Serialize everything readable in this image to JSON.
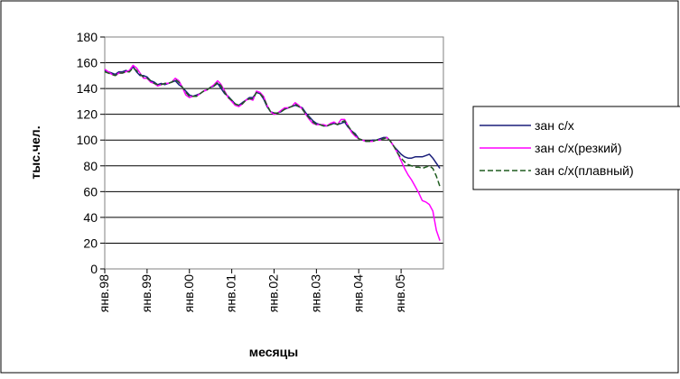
{
  "chart_data": {
    "type": "line",
    "xlabel": "месяцы",
    "ylabel": "тыс.чел.",
    "ylim": [
      0,
      180
    ],
    "yticks": [
      0,
      20,
      40,
      60,
      80,
      100,
      120,
      140,
      160,
      180
    ],
    "x_month_range": [
      "янв.98",
      "дек.05"
    ],
    "x_tick_labels": [
      "янв.98",
      "янв.99",
      "янв.00",
      "янв.01",
      "янв.02",
      "янв.03",
      "янв.04",
      "янв.05"
    ],
    "grid": "horizontal",
    "legend_position": "right",
    "series": [
      {
        "name": "зан с/х",
        "color": "#1a1f7a",
        "dash": "solid",
        "start_month_index": 0,
        "values": [
          154,
          153,
          152,
          151,
          153,
          153,
          154,
          153,
          157,
          153,
          150,
          150,
          149,
          146,
          145,
          143,
          144,
          143,
          144,
          145,
          146,
          143,
          141,
          138,
          135,
          134,
          135,
          136,
          138,
          139,
          141,
          142,
          144,
          140,
          136,
          134,
          131,
          128,
          127,
          129,
          131,
          133,
          133,
          137,
          136,
          132,
          126,
          122,
          121,
          121,
          122,
          124,
          125,
          126,
          127,
          126,
          125,
          121,
          118,
          115,
          113,
          112,
          111,
          111,
          112,
          113,
          112,
          113,
          114,
          110,
          107,
          105,
          101,
          100,
          99,
          99,
          100,
          100,
          101,
          102,
          102,
          99,
          95,
          92,
          89,
          87,
          86,
          86,
          87,
          87,
          87,
          88,
          89,
          86,
          82,
          78
        ]
      },
      {
        "name": "зан с/х(резкий)",
        "color": "#ff00ff",
        "dash": "solid",
        "start_month_index": 0,
        "values": [
          155,
          153,
          151,
          150,
          152,
          152,
          153,
          154,
          158,
          156,
          152,
          148,
          148,
          145,
          144,
          142,
          143,
          144,
          144,
          145,
          148,
          146,
          141,
          135,
          133,
          134,
          134,
          136,
          138,
          139,
          141,
          143,
          146,
          143,
          138,
          133,
          130,
          127,
          126,
          128,
          131,
          132,
          131,
          138,
          137,
          134,
          127,
          122,
          120,
          121,
          123,
          125,
          125,
          126,
          129,
          127,
          124,
          120,
          116,
          113,
          112,
          112,
          112,
          111,
          113,
          114,
          112,
          116,
          116,
          111,
          106,
          103,
          101,
          100,
          99,
          99,
          99,
          100,
          100,
          101,
          102,
          99,
          95,
          90,
          84,
          78,
          73,
          69,
          64,
          59,
          53,
          52,
          50,
          45,
          30,
          22
        ]
      },
      {
        "name": "зан с/х(плавный)",
        "color": "#1f5c1f",
        "dash": "dashed",
        "start_month_index": 0,
        "values": [
          153,
          152,
          151,
          150,
          152,
          152,
          153,
          153,
          156,
          154,
          151,
          149,
          148,
          146,
          144,
          143,
          143,
          144,
          144,
          145,
          147,
          145,
          141,
          137,
          134,
          134,
          134,
          136,
          138,
          139,
          141,
          142,
          145,
          142,
          137,
          133,
          131,
          128,
          127,
          128,
          131,
          132,
          132,
          137,
          136,
          133,
          127,
          122,
          121,
          121,
          122,
          124,
          125,
          126,
          128,
          126,
          124,
          120,
          117,
          114,
          112,
          112,
          111,
          111,
          112,
          113,
          112,
          114,
          115,
          111,
          107,
          104,
          101,
          100,
          99,
          99,
          99,
          100,
          100,
          101,
          102,
          99,
          95,
          90,
          86,
          83,
          81,
          80,
          79,
          79,
          78,
          79,
          80,
          78,
          72,
          64
        ]
      }
    ]
  }
}
